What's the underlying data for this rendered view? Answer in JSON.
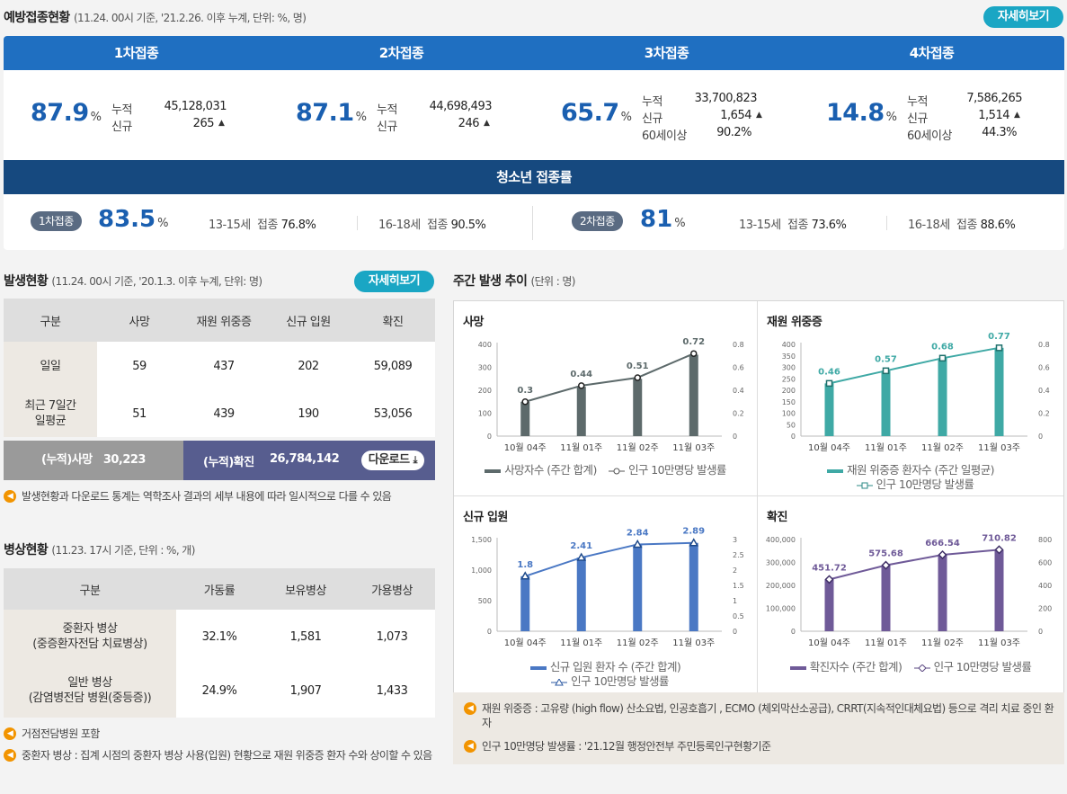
{
  "vaccination": {
    "title": "예방접종현황",
    "subtitle": "(11.24. 00시 기준, '21.2.26. 이후 누계, 단위: %, 명)",
    "detail_btn": "자세히보기",
    "doses": [
      {
        "label": "1차접종",
        "pct": "87.9",
        "unit": "%",
        "rows": [
          {
            "k": "누적",
            "v": "45,128,031"
          },
          {
            "k": "신규",
            "v": "265",
            "arrow": true
          }
        ]
      },
      {
        "label": "2차접종",
        "pct": "87.1",
        "unit": "%",
        "rows": [
          {
            "k": "누적",
            "v": "44,698,493"
          },
          {
            "k": "신규",
            "v": "246",
            "arrow": true
          }
        ]
      },
      {
        "label": "3차접종",
        "pct": "65.7",
        "unit": "%",
        "rows": [
          {
            "k": "누적",
            "v": "33,700,823"
          },
          {
            "k": "신규",
            "v": "1,654",
            "arrow": true
          },
          {
            "k": "60세이상",
            "v": "90.2%"
          }
        ]
      },
      {
        "label": "4차접종",
        "pct": "14.8",
        "unit": "%",
        "rows": [
          {
            "k": "누적",
            "v": "7,586,265"
          },
          {
            "k": "신규",
            "v": "1,514",
            "arrow": true
          },
          {
            "k": "60세이상",
            "v": "44.3%"
          }
        ]
      }
    ],
    "teen": {
      "title": "청소년 접종률",
      "dose1": {
        "label": "1차접종",
        "pct": "83.5",
        "unit": "%",
        "a_age": "13-15세",
        "a_k": "접종",
        "a_v": "76.8%",
        "b_age": "16-18세",
        "b_k": "접종",
        "b_v": "90.5%"
      },
      "dose2": {
        "label": "2차접종",
        "pct": "81",
        "unit": "%",
        "a_age": "13-15세",
        "a_k": "접종",
        "a_v": "73.6%",
        "b_age": "16-18세",
        "b_k": "접종",
        "b_v": "88.6%"
      }
    }
  },
  "occurrence": {
    "title": "발생현황",
    "subtitle": "(11.24. 00시 기준, '20.1.3. 이후 누계, 단위: 명)",
    "detail_btn": "자세히보기",
    "headers": [
      "구분",
      "사망",
      "재원 위중증",
      "신규 입원",
      "확진"
    ],
    "rows": [
      {
        "label": "일일",
        "values": [
          "59",
          "437",
          "202",
          "59,089"
        ]
      },
      {
        "label": "최근 7일간\n일평균",
        "values": [
          "51",
          "439",
          "190",
          "53,056"
        ]
      }
    ],
    "cum_death_label": "(누적)사망",
    "cum_death_value": "30,223",
    "cum_conf_label": "(누적)확진",
    "cum_conf_value": "26,784,142",
    "download_label": "다운로드",
    "note": "발생현황과 다운로드 통계는 역학조사 결과의 세부 내용에 따라 일시적으로 다를 수 있음"
  },
  "beds": {
    "title": "병상현황",
    "subtitle": "(11.23. 17시 기준, 단위 : %, 개)",
    "headers": [
      "구분",
      "가동률",
      "보유병상",
      "가용병상"
    ],
    "rows": [
      {
        "label": "중환자 병상\n(중증환자전담 치료병상)",
        "values": [
          "32.1%",
          "1,581",
          "1,073"
        ]
      },
      {
        "label": "일반 병상\n(감염병전담 병원(중등증))",
        "values": [
          "24.9%",
          "1,907",
          "1,433"
        ]
      }
    ],
    "notes": [
      "거점전담병원 포함",
      "중환자 병상 : 집계 시점의 중환자 병상 사용(입원) 현황으로 재원 위중증 환자 수와 상이할 수 있음"
    ]
  },
  "weekly": {
    "title": "주간 발생 추이",
    "subtitle": "(단위 : 명)",
    "notes": [
      "재원 위중증 : 고유량 (high flow) 산소요법, 인공호흡기 , ECMO (체외막산소공급), CRRT(지속적인대체요법) 등으로 격리 치료 중인 환자",
      "인구 10만명당 발생률 : '21.12월 행정안전부 주민등록인구현황기준"
    ]
  },
  "chart_data": [
    {
      "type": "bar",
      "title": "사망",
      "color": "#5d6a6b",
      "categories": [
        "10월 04주",
        "11월 01주",
        "11월 02주",
        "11월 03주"
      ],
      "series": [
        {
          "name": "사망자수 (주간 합계)",
          "values": [
            150,
            215,
            250,
            355
          ]
        },
        {
          "name": "인구 10만명당 발생률",
          "values": [
            0.3,
            0.44,
            0.51,
            0.72
          ]
        }
      ],
      "ylim": [
        0,
        400
      ],
      "yticks": [
        "0",
        "100",
        "200",
        "300",
        "400"
      ],
      "y2lim": [
        0,
        0.8
      ],
      "y2ticks": [
        "0",
        "0.2",
        "0.4",
        "0.6",
        "0.8"
      ],
      "labels": [
        "0.3",
        "0.44",
        "0.51",
        "0.72"
      ],
      "legend_bar": "사망자수 (주간 합계)",
      "legend_line": "인구 10만명당 발생률",
      "marker": "circle"
    },
    {
      "type": "bar",
      "title": "재원 위중증",
      "color": "#3fa9a5",
      "categories": [
        "10월 04주",
        "11월 01주",
        "11월 02주",
        "11월 03주"
      ],
      "series": [
        {
          "name": "재원 위중증 환자수 (주간 일평균)",
          "values": [
            230,
            285,
            340,
            385
          ]
        },
        {
          "name": "인구 10만명당 발생률",
          "values": [
            0.46,
            0.57,
            0.68,
            0.77
          ]
        }
      ],
      "ylim": [
        0,
        400
      ],
      "yticks": [
        "0",
        "50",
        "100",
        "150",
        "200",
        "250",
        "300",
        "350",
        "400"
      ],
      "y2lim": [
        0,
        0.8
      ],
      "y2ticks": [
        "0",
        "0.2",
        "0.4",
        "0.6",
        "0.8"
      ],
      "labels": [
        "0.46",
        "0.57",
        "0.68",
        "0.77"
      ],
      "legend_bar": "재원 위중증 환자수 (주간 일평균)",
      "legend_line": "인구 10만명당 발생률",
      "marker": "square"
    },
    {
      "type": "bar",
      "title": "신규 입원",
      "color": "#4a78c4",
      "categories": [
        "10월 04주",
        "11월 01주",
        "11월 02주",
        "11월 03주"
      ],
      "series": [
        {
          "name": "신규 입원 환자 수 (주간 합계)",
          "values": [
            900,
            1205,
            1420,
            1445
          ]
        },
        {
          "name": "인구 10만명당 발생률",
          "values": [
            1.8,
            2.41,
            2.84,
            2.89
          ]
        }
      ],
      "ylim": [
        0,
        1500
      ],
      "yticks": [
        "0",
        "500",
        "1,000",
        "1,500"
      ],
      "y2lim": [
        0,
        3
      ],
      "y2ticks": [
        "0",
        "0.5",
        "1",
        "1.5",
        "2",
        "2.5",
        "3"
      ],
      "labels": [
        "1.8",
        "2.41",
        "2.84",
        "2.89"
      ],
      "legend_bar": "신규 입원 환자 수 (주간 합계)",
      "legend_line": "인구 10만명당 발생률",
      "marker": "triangle"
    },
    {
      "type": "bar",
      "title": "확진",
      "color": "#6f5a98",
      "categories": [
        "10월 04주",
        "11월 01주",
        "11월 02주",
        "11월 03주"
      ],
      "series": [
        {
          "name": "확진자수 (주간 합계)",
          "values": [
            225000,
            287000,
            332000,
            354000
          ]
        },
        {
          "name": "인구 10만명당 발생률",
          "values": [
            451.72,
            575.68,
            666.54,
            710.82
          ]
        }
      ],
      "ylim": [
        0,
        400000
      ],
      "yticks": [
        "0",
        "100,000",
        "200,000",
        "300,000",
        "400,000"
      ],
      "y2lim": [
        0,
        800
      ],
      "y2ticks": [
        "0",
        "200",
        "400",
        "600",
        "800"
      ],
      "labels": [
        "451.72",
        "575.68",
        "666.54",
        "710.82"
      ],
      "legend_bar": "확진자수 (주간 합계)",
      "legend_line": "인구 10만명당 발생률",
      "marker": "diamond"
    }
  ]
}
